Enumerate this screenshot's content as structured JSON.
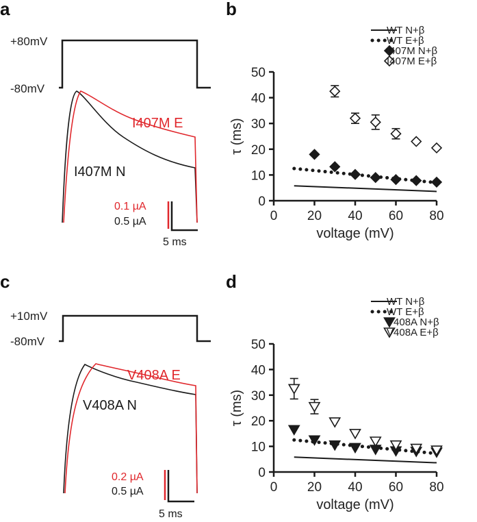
{
  "colors": {
    "red": "#e0262b",
    "black": "#1a1a1a"
  },
  "panels": {
    "a": {
      "letter": "a",
      "protocol": {
        "high_label": "+80mV",
        "low_label": "-80mV"
      },
      "trace_labels": {
        "red": "I407M E",
        "black": "I407M N"
      },
      "scale": {
        "red": "0.1 µA",
        "black": "0.5 µA",
        "time": "5 ms"
      }
    },
    "b": {
      "letter": "b"
    },
    "c": {
      "letter": "c",
      "protocol": {
        "high_label": "+10mV",
        "low_label": "-80mV"
      },
      "trace_labels": {
        "red": "V408A E",
        "black": "V408A N"
      },
      "scale": {
        "red": "0.2 µA",
        "black": "0.5 µA",
        "time": "5 ms"
      }
    },
    "d": {
      "letter": "d"
    }
  },
  "chart_data": [
    {
      "panel": "b",
      "type": "scatter",
      "xlabel": "voltage (mV)",
      "ylabel": "τ (ms)",
      "xlim": [
        0,
        80
      ],
      "ylim": [
        0,
        50
      ],
      "xticks": [
        "0",
        "20",
        "40",
        "60",
        "80"
      ],
      "yticks": [
        "0",
        "10",
        "20",
        "30",
        "40",
        "50"
      ],
      "legend_position": "top-right",
      "series": [
        {
          "name": "WT N+β",
          "style": "line",
          "x": [
            10,
            80
          ],
          "y": [
            5.8,
            3.6
          ]
        },
        {
          "name": "WT E+β",
          "style": "dotted",
          "x": [
            10,
            80
          ],
          "y": [
            12.5,
            7.0
          ]
        },
        {
          "name": "I407M N+β",
          "style": "filled-diamond",
          "x": [
            20,
            30,
            40,
            50,
            60,
            70,
            80
          ],
          "y": [
            18,
            13.2,
            10.2,
            9,
            8.2,
            7.8,
            7.2
          ]
        },
        {
          "name": "I407M E+β",
          "style": "open-diamond",
          "x": [
            30,
            40,
            50,
            60,
            70,
            80
          ],
          "y": [
            42.5,
            32,
            30.5,
            26,
            23,
            20.5
          ],
          "err": [
            2.2,
            2.0,
            2.8,
            2.0,
            0,
            0
          ]
        }
      ]
    },
    {
      "panel": "d",
      "type": "scatter",
      "xlabel": "voltage (mV)",
      "ylabel": "τ (ms)",
      "xlim": [
        0,
        80
      ],
      "ylim": [
        0,
        50
      ],
      "xticks": [
        "0",
        "20",
        "40",
        "60",
        "80"
      ],
      "yticks": [
        "0",
        "10",
        "20",
        "30",
        "40",
        "50"
      ],
      "legend_position": "top-right",
      "series": [
        {
          "name": "WT N+β",
          "style": "line",
          "x": [
            10,
            80
          ],
          "y": [
            5.8,
            3.6
          ]
        },
        {
          "name": "WT E+β",
          "style": "dotted",
          "x": [
            10,
            80
          ],
          "y": [
            12.5,
            7.2
          ]
        },
        {
          "name": "V408A N+β",
          "style": "filled-triangle",
          "x": [
            10,
            20,
            30,
            40,
            50,
            60,
            70,
            80
          ],
          "y": [
            16.5,
            12.5,
            10.5,
            9.5,
            8.8,
            8.2,
            8.0,
            7.7
          ]
        },
        {
          "name": "V408A E+β",
          "style": "open-triangle",
          "x": [
            10,
            20,
            30,
            40,
            50,
            60,
            70,
            80
          ],
          "y": [
            32.5,
            25.5,
            19.5,
            15,
            12,
            10.5,
            9.2,
            8.5
          ],
          "err": [
            4.0,
            2.8,
            0,
            0,
            0,
            0,
            0,
            0
          ]
        }
      ]
    }
  ]
}
